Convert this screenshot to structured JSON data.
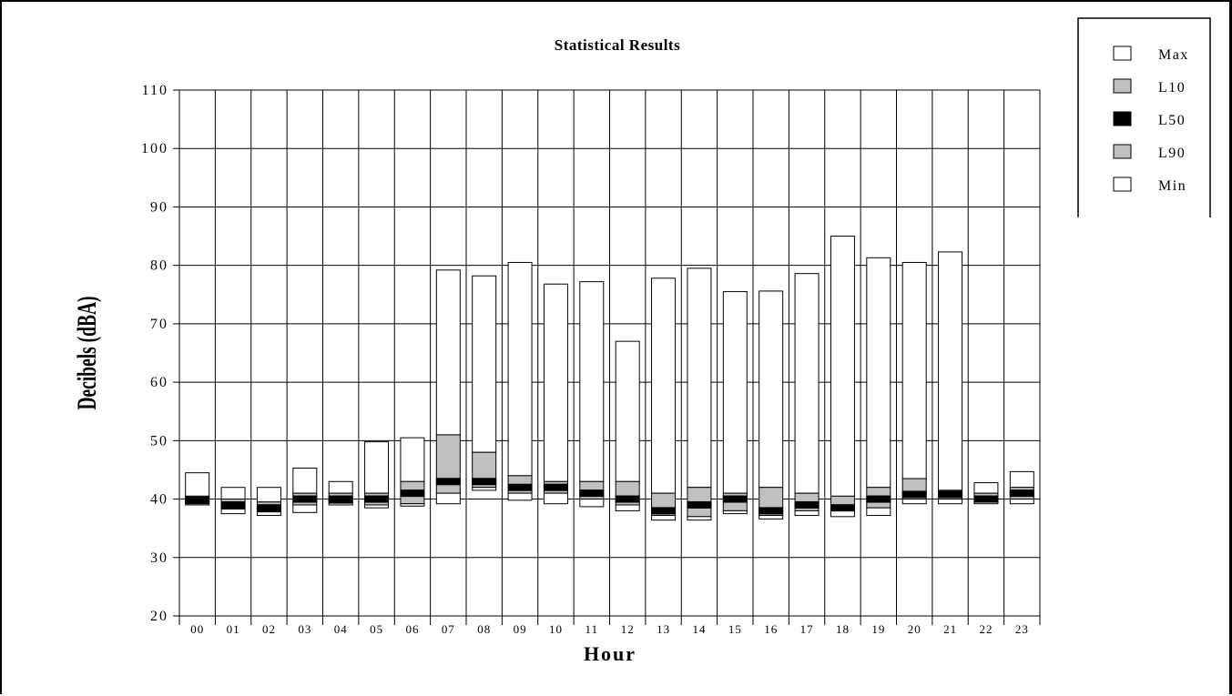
{
  "chart_data": {
    "type": "bar",
    "subtype": "floating-stacked-statistical",
    "title": "Statistical Results",
    "xlabel": "Hour",
    "ylabel": "Decibels (dBA)",
    "ylim": [
      20,
      110
    ],
    "yticks": [
      20,
      30,
      40,
      50,
      60,
      70,
      80,
      90,
      100,
      110
    ],
    "grid": true,
    "legend_position": "top-right",
    "categories": [
      "00",
      "01",
      "02",
      "03",
      "04",
      "05",
      "06",
      "07",
      "08",
      "09",
      "10",
      "11",
      "12",
      "13",
      "14",
      "15",
      "16",
      "17",
      "18",
      "19",
      "20",
      "21",
      "22",
      "23"
    ],
    "series": [
      {
        "name": "Max",
        "color": "#ffffff",
        "values": [
          44.5,
          42.0,
          42.0,
          45.3,
          43.0,
          49.8,
          50.5,
          79.2,
          78.2,
          80.5,
          76.8,
          77.2,
          67.0,
          77.8,
          79.5,
          75.5,
          75.6,
          78.6,
          85.0,
          81.3,
          80.5,
          82.3,
          42.8,
          44.7
        ]
      },
      {
        "name": "L10",
        "color": "#c0c0c0",
        "values": [
          40.5,
          40.0,
          39.5,
          41.0,
          41.0,
          41.0,
          43.0,
          51.0,
          48.0,
          44.0,
          43.0,
          43.0,
          43.0,
          41.0,
          42.0,
          41.0,
          42.0,
          41.0,
          40.5,
          42.0,
          43.5,
          41.5,
          41.0,
          42.0
        ]
      },
      {
        "name": "L50",
        "color": "#000000",
        "values": [
          39.8,
          39.0,
          38.5,
          40.0,
          40.0,
          40.0,
          41.0,
          43.0,
          43.0,
          42.0,
          42.0,
          41.0,
          40.0,
          38.0,
          39.0,
          40.0,
          38.0,
          39.0,
          38.5,
          40.0,
          40.8,
          40.8,
          40.0,
          41.0
        ]
      },
      {
        "name": "L90",
        "color": "#c0c0c0",
        "values": [
          39.2,
          38.3,
          37.8,
          39.0,
          39.3,
          39.0,
          39.2,
          41.0,
          42.0,
          41.0,
          41.0,
          40.0,
          39.0,
          37.2,
          37.0,
          38.0,
          37.2,
          38.0,
          38.0,
          38.5,
          40.0,
          40.0,
          39.5,
          40.0
        ]
      },
      {
        "name": "Min",
        "color": "#ffffff",
        "values": [
          39.0,
          37.5,
          37.2,
          37.7,
          39.0,
          38.5,
          38.8,
          39.2,
          41.5,
          39.8,
          39.2,
          38.7,
          38.0,
          36.4,
          36.4,
          37.5,
          36.6,
          37.2,
          37.0,
          37.2,
          39.2,
          39.2,
          39.2,
          39.2
        ]
      }
    ]
  }
}
